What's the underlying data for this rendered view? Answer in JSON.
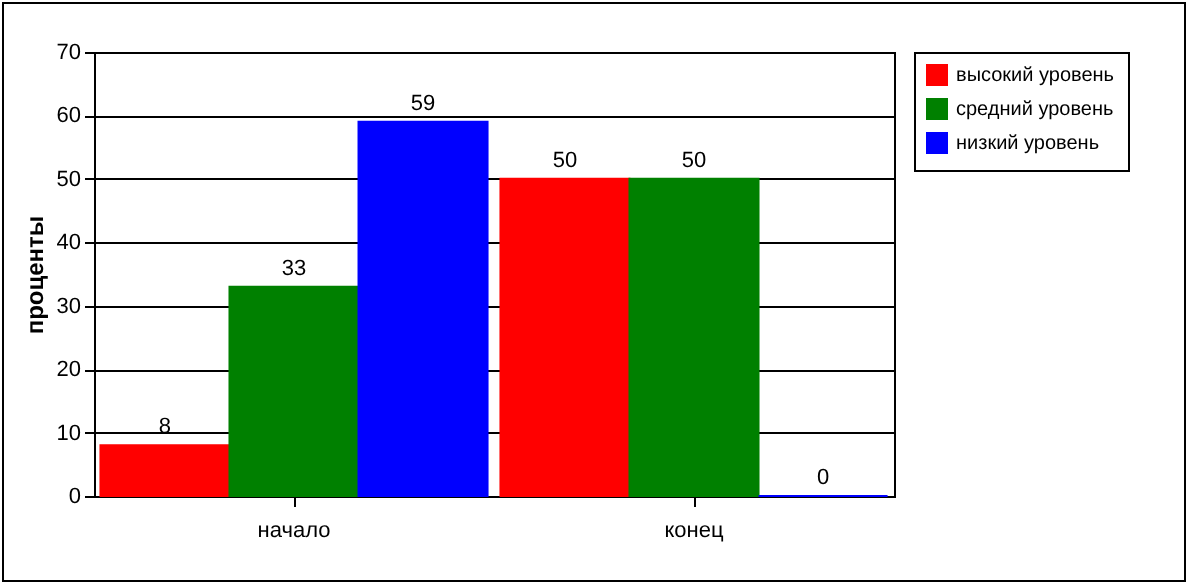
{
  "chart_data": {
    "type": "bar",
    "ylabel": "проценты",
    "categories": [
      "начало",
      "конец"
    ],
    "series": [
      {
        "name": "высокий уровень",
        "color": "#ff0000",
        "values": [
          8,
          50
        ]
      },
      {
        "name": "средний уровень",
        "color": "#008000",
        "values": [
          33,
          50
        ]
      },
      {
        "name": "низкий уровень",
        "color": "#0000ff",
        "values": [
          59,
          0
        ]
      }
    ],
    "ylim": [
      0,
      70
    ],
    "yticks": [
      0,
      10,
      20,
      30,
      40,
      50,
      60,
      70
    ],
    "grid": "y",
    "legend": "right",
    "data_labels": true
  }
}
